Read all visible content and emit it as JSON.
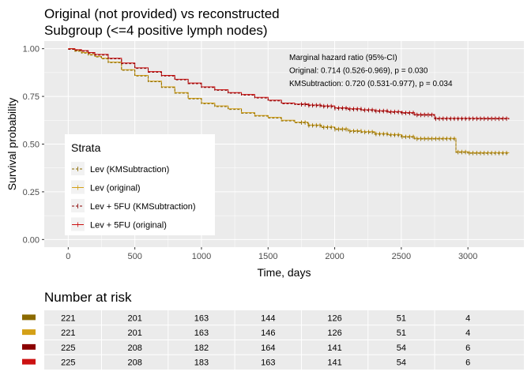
{
  "title_lines": [
    "Original (not provided) vs reconstructed",
    "Subgroup (<=4 positive lymph nodes)"
  ],
  "colors": {
    "lev_km": "#8B6A00",
    "lev_orig": "#D4A017",
    "fu_km": "#8B0000",
    "fu_orig": "#CC1111",
    "panel_bg": "#EBEBEB",
    "grid": "#FFFFFF"
  },
  "chart_data": {
    "type": "line",
    "title": "Original (not provided) vs reconstructed\nSubgroup (<=4 positive lymph nodes)",
    "xlabel": "Time, days",
    "ylabel": "Survival probability",
    "xlim": [
      -180,
      3420
    ],
    "ylim": [
      -0.04,
      1.04
    ],
    "x_ticks": [
      0,
      500,
      1000,
      1500,
      2000,
      2500,
      3000
    ],
    "y_ticks": [
      0.0,
      0.25,
      0.5,
      0.75,
      1.0
    ],
    "y_tick_labels": [
      "0.00",
      "0.25",
      "0.50",
      "0.75",
      "1.00"
    ],
    "grid": true,
    "legend": {
      "title": "Strata",
      "placement": "left",
      "entries": [
        "Lev (KMSubtraction)",
        "Lev (original)",
        "Lev + 5FU (KMSubtraction)",
        "Lev + 5FU (original)"
      ]
    },
    "annotation": [
      "Marginal hazard ratio (95%-CI)",
      "Original: 0.714 (0.526-0.969), p = 0.030",
      "KMSubtraction: 0.720 (0.531-0.977), p = 0.034"
    ],
    "series": [
      {
        "name": "Lev (KMSubtraction)",
        "color_key": "lev_km",
        "dashed": true,
        "x": [
          0,
          50,
          100,
          150,
          200,
          250,
          300,
          400,
          500,
          600,
          700,
          800,
          900,
          1000,
          1100,
          1200,
          1300,
          1400,
          1500,
          1600,
          1700,
          1800,
          1900,
          2000,
          2100,
          2200,
          2300,
          2400,
          2500,
          2600,
          2700,
          2800,
          2910,
          3000,
          3100,
          3200,
          3310
        ],
        "y": [
          1.0,
          0.99,
          0.98,
          0.97,
          0.96,
          0.95,
          0.93,
          0.89,
          0.86,
          0.83,
          0.8,
          0.77,
          0.74,
          0.715,
          0.7,
          0.685,
          0.665,
          0.65,
          0.64,
          0.625,
          0.615,
          0.6,
          0.59,
          0.58,
          0.57,
          0.565,
          0.555,
          0.55,
          0.54,
          0.53,
          0.53,
          0.53,
          0.46,
          0.455,
          0.455,
          0.455,
          0.455
        ],
        "censor_from": 1750
      },
      {
        "name": "Lev (original)",
        "color_key": "lev_orig",
        "dashed": false,
        "x": [
          0,
          50,
          100,
          150,
          200,
          250,
          300,
          400,
          500,
          600,
          700,
          800,
          900,
          1000,
          1100,
          1200,
          1300,
          1400,
          1500,
          1600,
          1700,
          1800,
          1900,
          2000,
          2100,
          2200,
          2300,
          2400,
          2500,
          2600,
          2700,
          2800,
          2910,
          3000,
          3100,
          3200,
          3310
        ],
        "y": [
          1.0,
          0.99,
          0.98,
          0.97,
          0.96,
          0.95,
          0.93,
          0.89,
          0.86,
          0.83,
          0.8,
          0.77,
          0.74,
          0.715,
          0.7,
          0.685,
          0.665,
          0.65,
          0.64,
          0.625,
          0.615,
          0.6,
          0.59,
          0.58,
          0.57,
          0.565,
          0.555,
          0.55,
          0.54,
          0.53,
          0.53,
          0.53,
          0.46,
          0.455,
          0.455,
          0.455,
          0.455
        ],
        "censor_from": 1750
      },
      {
        "name": "Lev + 5FU (KMSubtraction)",
        "color_key": "fu_km",
        "dashed": true,
        "x": [
          0,
          50,
          100,
          150,
          200,
          300,
          400,
          500,
          600,
          700,
          800,
          900,
          1000,
          1100,
          1200,
          1300,
          1400,
          1500,
          1600,
          1700,
          1800,
          1900,
          2000,
          2100,
          2200,
          2300,
          2400,
          2500,
          2600,
          2700,
          2750,
          2900,
          3000,
          3100,
          3200,
          3310
        ],
        "y": [
          1.0,
          0.995,
          0.99,
          0.98,
          0.97,
          0.95,
          0.925,
          0.9,
          0.88,
          0.86,
          0.84,
          0.82,
          0.8,
          0.785,
          0.77,
          0.76,
          0.745,
          0.73,
          0.715,
          0.71,
          0.705,
          0.7,
          0.69,
          0.685,
          0.68,
          0.675,
          0.67,
          0.665,
          0.655,
          0.655,
          0.635,
          0.635,
          0.635,
          0.635,
          0.635,
          0.635
        ],
        "censor_from": 1750
      },
      {
        "name": "Lev + 5FU (original)",
        "color_key": "fu_orig",
        "dashed": false,
        "x": [
          0,
          50,
          100,
          150,
          200,
          300,
          400,
          500,
          600,
          700,
          800,
          900,
          1000,
          1100,
          1200,
          1300,
          1400,
          1500,
          1600,
          1700,
          1800,
          1900,
          2000,
          2100,
          2200,
          2300,
          2400,
          2500,
          2600,
          2700,
          2750,
          2900,
          3000,
          3100,
          3200,
          3310
        ],
        "y": [
          1.0,
          0.995,
          0.99,
          0.98,
          0.97,
          0.95,
          0.925,
          0.9,
          0.88,
          0.86,
          0.84,
          0.82,
          0.8,
          0.785,
          0.77,
          0.76,
          0.745,
          0.73,
          0.715,
          0.71,
          0.705,
          0.7,
          0.69,
          0.685,
          0.68,
          0.675,
          0.67,
          0.665,
          0.655,
          0.655,
          0.635,
          0.635,
          0.635,
          0.635,
          0.635,
          0.635
        ],
        "censor_from": 1750
      }
    ],
    "risk_table": {
      "title": "Number at risk",
      "time_points": [
        0,
        500,
        1000,
        1500,
        2000,
        2500,
        3000
      ],
      "rows": [
        {
          "color_key": "lev_km",
          "values": [
            "221",
            "201",
            "163",
            "144",
            "126",
            "51",
            "4"
          ]
        },
        {
          "color_key": "lev_orig",
          "values": [
            "221",
            "201",
            "163",
            "146",
            "126",
            "51",
            "4"
          ]
        },
        {
          "color_key": "fu_km",
          "values": [
            "225",
            "208",
            "182",
            "164",
            "141",
            "54",
            "6"
          ]
        },
        {
          "color_key": "fu_orig",
          "values": [
            "225",
            "208",
            "183",
            "163",
            "141",
            "54",
            "6"
          ]
        }
      ]
    }
  }
}
